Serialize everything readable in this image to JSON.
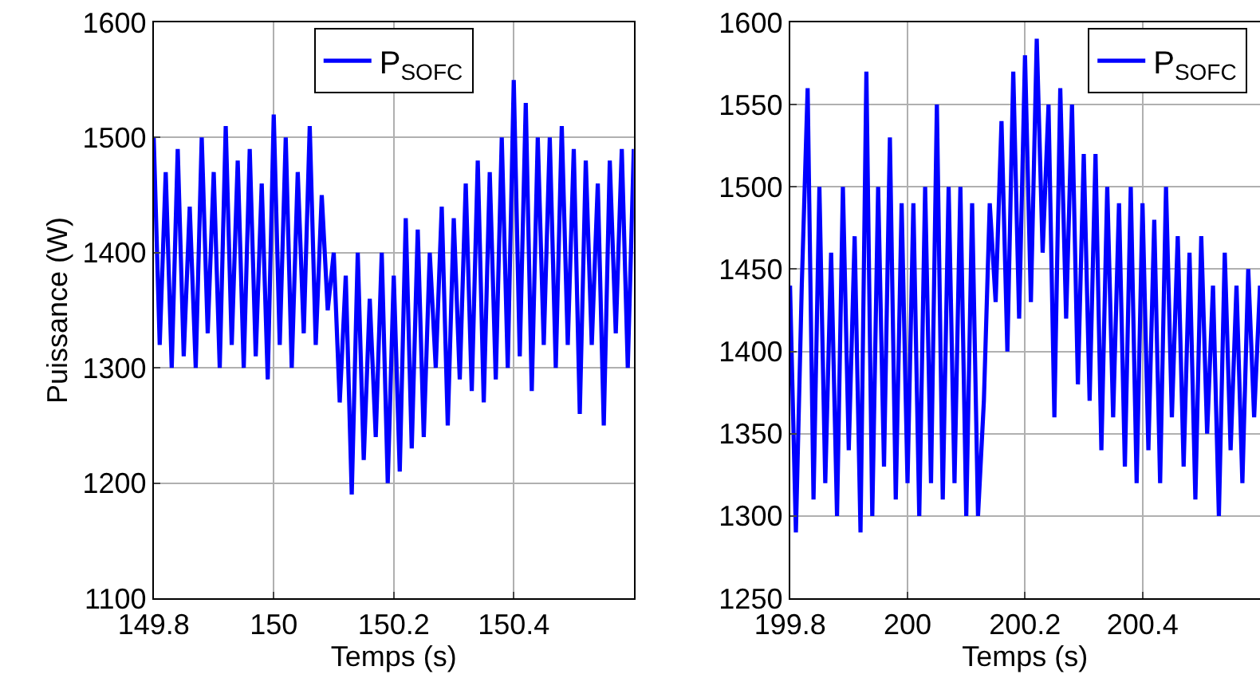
{
  "chart_data": [
    {
      "type": "line",
      "xlabel": "Temps (s)",
      "ylabel": "Puissance (W)",
      "xlim": [
        149.8,
        150.6
      ],
      "xticks": [
        149.8,
        150,
        150.2,
        150.4
      ],
      "ylim": [
        1100,
        1600
      ],
      "yticks": [
        1100,
        1200,
        1300,
        1400,
        1500,
        1600
      ],
      "grid": true,
      "legend": "top",
      "line_style": "solid",
      "x": [
        149.8,
        149.81,
        149.82,
        149.83,
        149.84,
        149.85,
        149.86,
        149.87,
        149.88,
        149.89,
        149.9,
        149.91,
        149.92,
        149.93,
        149.94,
        149.95,
        149.96,
        149.97,
        149.98,
        149.99,
        150.0,
        150.01,
        150.02,
        150.03,
        150.04,
        150.05,
        150.06,
        150.07,
        150.08,
        150.09,
        150.1,
        150.11,
        150.12,
        150.13,
        150.14,
        150.15,
        150.16,
        150.17,
        150.18,
        150.19,
        150.2,
        150.21,
        150.22,
        150.23,
        150.24,
        150.25,
        150.26,
        150.27,
        150.28,
        150.29,
        150.3,
        150.31,
        150.32,
        150.33,
        150.34,
        150.35,
        150.36,
        150.37,
        150.38,
        150.39,
        150.4,
        150.41,
        150.42,
        150.43,
        150.44,
        150.45,
        150.46,
        150.47,
        150.48,
        150.49,
        150.5,
        150.51,
        150.52,
        150.53,
        150.54,
        150.55,
        150.56,
        150.57,
        150.58,
        150.59,
        150.6
      ],
      "series": [
        {
          "name": "P$_{SOFC}$",
          "color": "#0000ff",
          "values": [
            1500,
            1320,
            1470,
            1300,
            1490,
            1310,
            1440,
            1300,
            1500,
            1330,
            1470,
            1300,
            1510,
            1320,
            1480,
            1300,
            1490,
            1310,
            1460,
            1290,
            1520,
            1320,
            1500,
            1300,
            1470,
            1330,
            1510,
            1320,
            1450,
            1350,
            1400,
            1270,
            1380,
            1190,
            1400,
            1220,
            1360,
            1240,
            1400,
            1200,
            1380,
            1210,
            1430,
            1230,
            1420,
            1240,
            1400,
            1300,
            1440,
            1250,
            1430,
            1290,
            1460,
            1280,
            1480,
            1270,
            1470,
            1290,
            1500,
            1300,
            1550,
            1310,
            1530,
            1280,
            1500,
            1320,
            1500,
            1300,
            1510,
            1320,
            1490,
            1260,
            1480,
            1320,
            1460,
            1250,
            1480,
            1330,
            1490,
            1300,
            1490
          ]
        }
      ]
    },
    {
      "type": "line",
      "xlabel": "Temps (s)",
      "xlim": [
        199.8,
        200.6
      ],
      "xticks": [
        199.8,
        200,
        200.2,
        200.4
      ],
      "ylim": [
        1250,
        1600
      ],
      "yticks": [
        1250,
        1300,
        1350,
        1400,
        1450,
        1500,
        1550,
        1600
      ],
      "grid": true,
      "legend": "top right",
      "line_style": "solid",
      "x": [
        199.8,
        199.81,
        199.82,
        199.83,
        199.84,
        199.85,
        199.86,
        199.87,
        199.88,
        199.89,
        199.9,
        199.91,
        199.92,
        199.93,
        199.94,
        199.95,
        199.96,
        199.97,
        199.98,
        199.99,
        200.0,
        200.01,
        200.02,
        200.03,
        200.04,
        200.05,
        200.06,
        200.07,
        200.08,
        200.09,
        200.1,
        200.11,
        200.12,
        200.13,
        200.14,
        200.15,
        200.16,
        200.17,
        200.18,
        200.19,
        200.2,
        200.21,
        200.22,
        200.23,
        200.24,
        200.25,
        200.26,
        200.27,
        200.28,
        200.29,
        200.3,
        200.31,
        200.32,
        200.33,
        200.34,
        200.35,
        200.36,
        200.37,
        200.38,
        200.39,
        200.4,
        200.41,
        200.42,
        200.43,
        200.44,
        200.45,
        200.46,
        200.47,
        200.48,
        200.49,
        200.5,
        200.51,
        200.52,
        200.53,
        200.54,
        200.55,
        200.56,
        200.57,
        200.58,
        200.59,
        200.6
      ],
      "series": [
        {
          "name": "P$_{SOFC}$",
          "color": "#0000ff",
          "values": [
            1440,
            1290,
            1440,
            1560,
            1310,
            1500,
            1320,
            1460,
            1300,
            1500,
            1340,
            1470,
            1290,
            1570,
            1300,
            1500,
            1330,
            1530,
            1310,
            1490,
            1320,
            1490,
            1300,
            1500,
            1320,
            1550,
            1310,
            1500,
            1320,
            1500,
            1300,
            1490,
            1300,
            1370,
            1490,
            1430,
            1540,
            1400,
            1570,
            1420,
            1580,
            1430,
            1590,
            1460,
            1550,
            1360,
            1560,
            1420,
            1550,
            1380,
            1520,
            1370,
            1520,
            1340,
            1500,
            1360,
            1490,
            1330,
            1500,
            1320,
            1490,
            1340,
            1480,
            1320,
            1500,
            1360,
            1470,
            1330,
            1460,
            1310,
            1470,
            1350,
            1440,
            1300,
            1460,
            1340,
            1440,
            1320,
            1450,
            1360,
            1440
          ]
        }
      ]
    }
  ]
}
